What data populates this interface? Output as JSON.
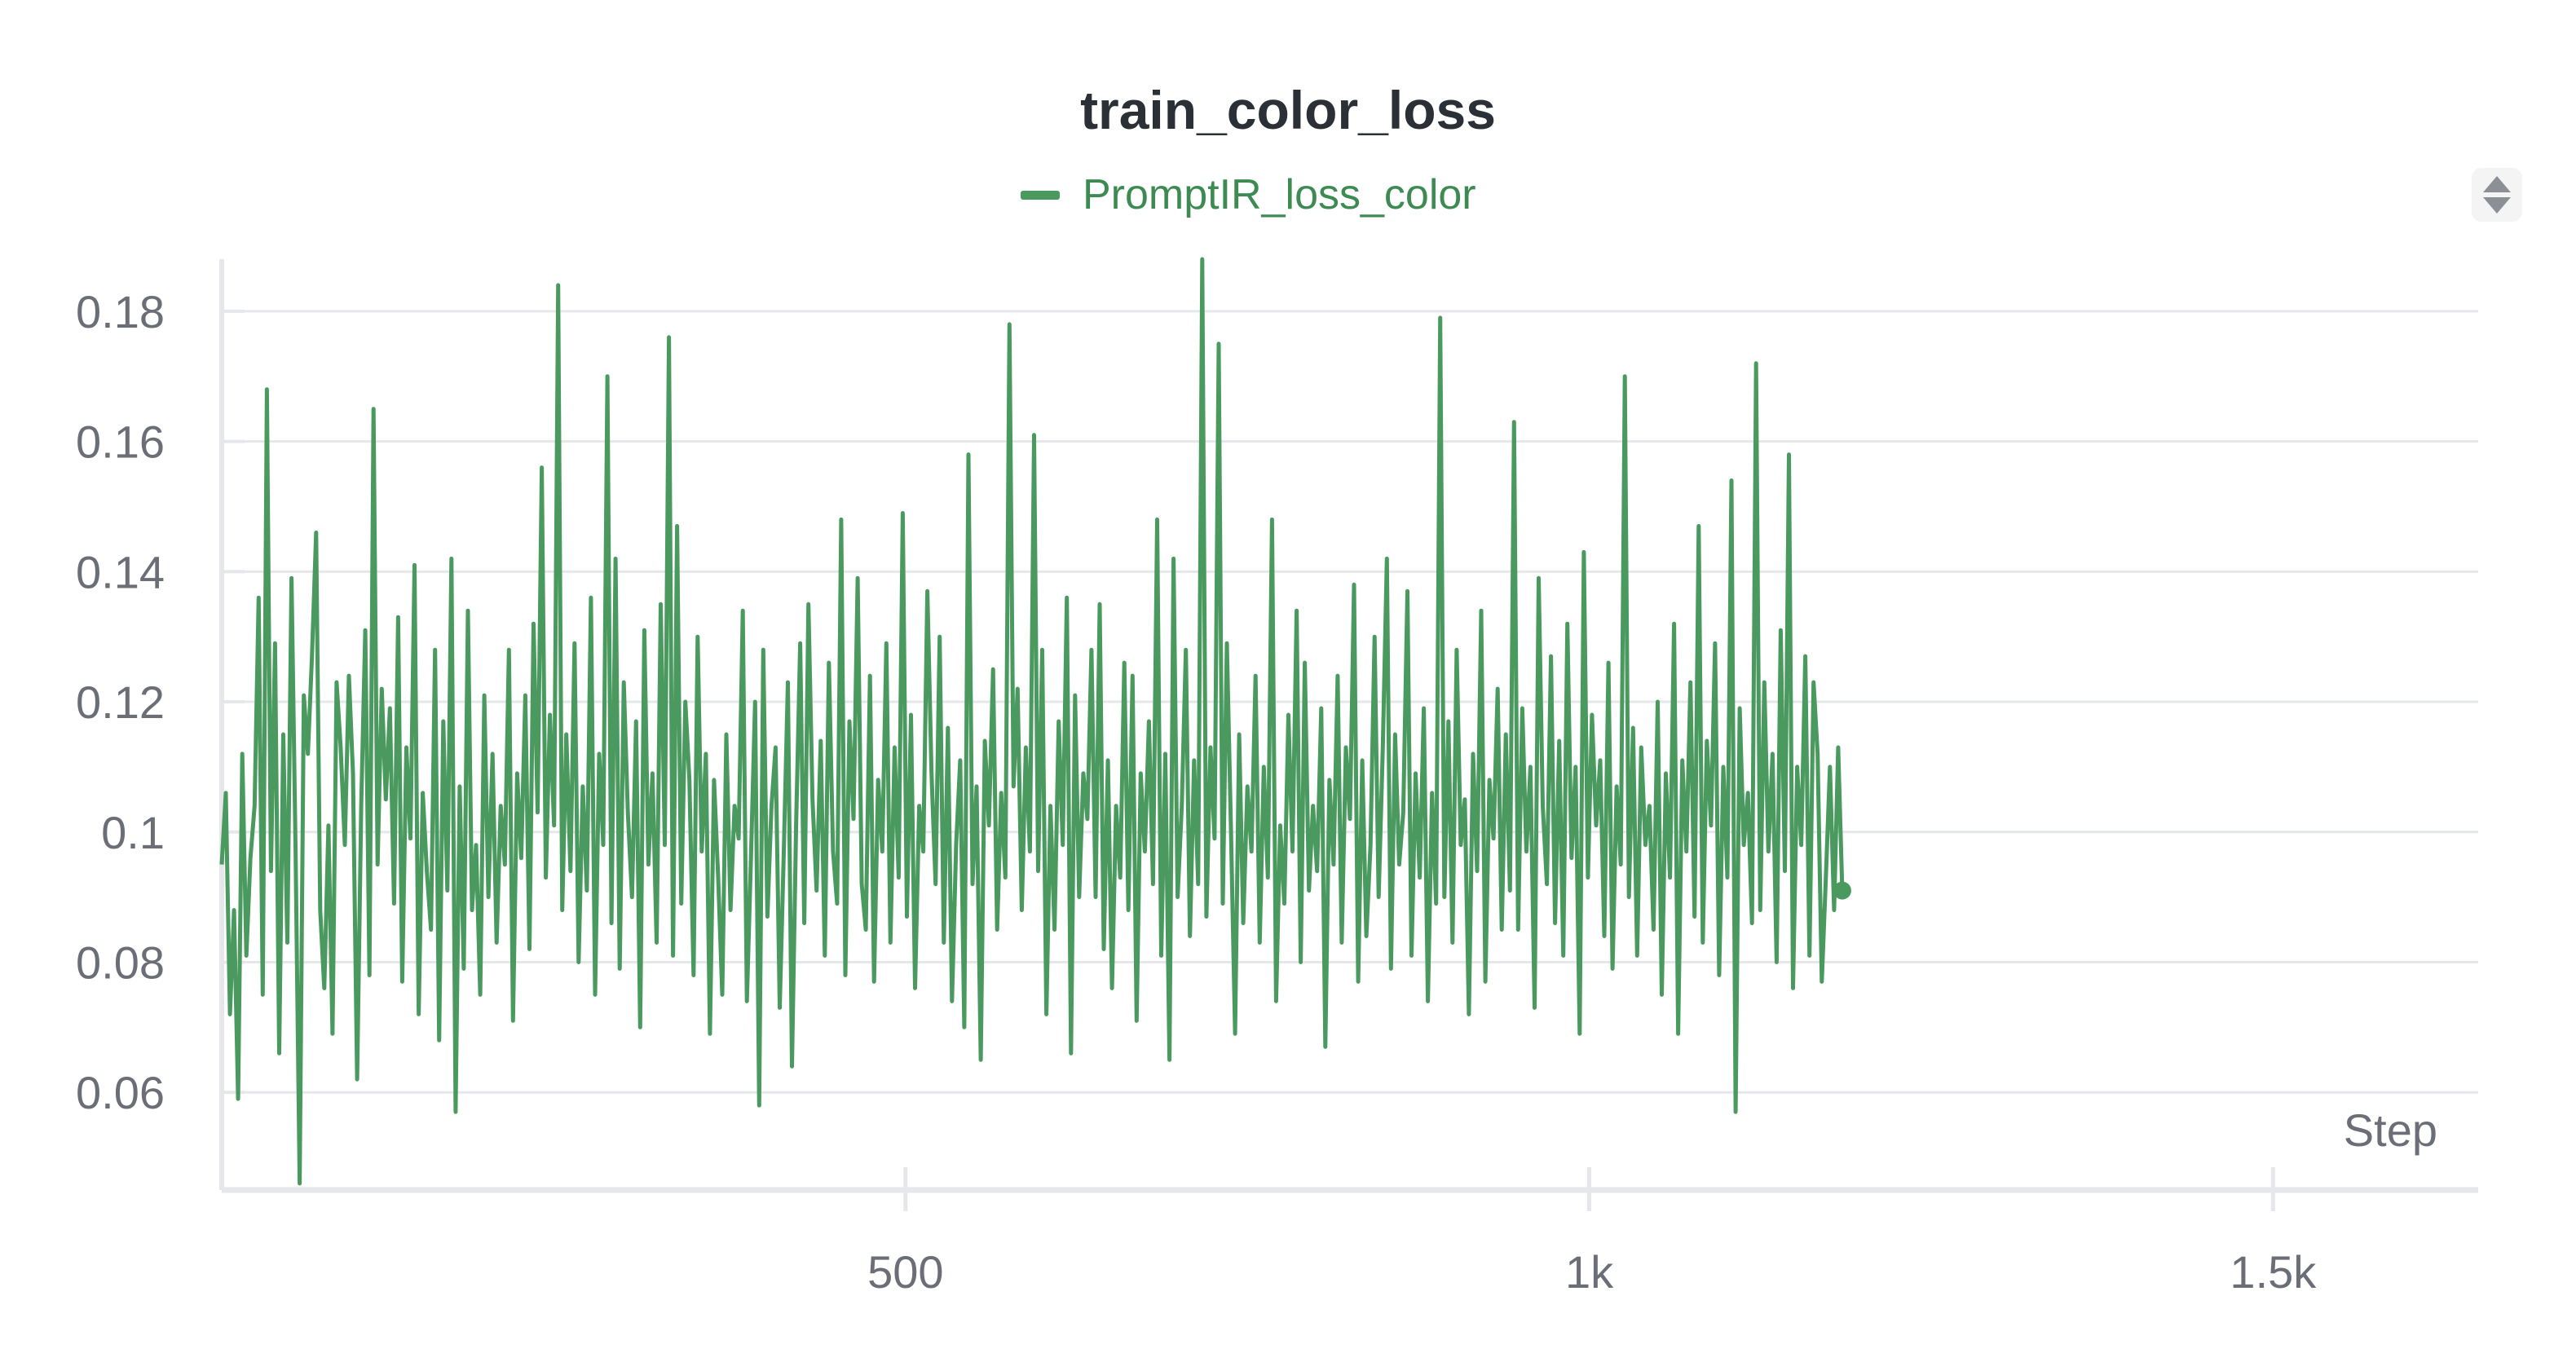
{
  "chart_data": {
    "type": "line",
    "title": "train_color_loss",
    "xlabel": "Step",
    "ylabel": "",
    "xlim": [
      0,
      1650
    ],
    "ylim": [
      0.045,
      0.188
    ],
    "x_ticks": [
      500,
      1000,
      1500
    ],
    "x_tick_labels": [
      "500",
      "1k",
      "1.5k"
    ],
    "y_ticks": [
      0.06,
      0.08,
      0.1,
      0.12,
      0.14,
      0.16,
      0.18
    ],
    "y_tick_labels": [
      "0.06",
      "0.08",
      "0.1",
      "0.12",
      "0.14",
      "0.16",
      "0.18"
    ],
    "grid": true,
    "legend_position": "top-center",
    "series": [
      {
        "name": "PromptIR_loss_color",
        "color": "#4a9a5f",
        "x_step": 3,
        "values": [
          0.095,
          0.106,
          0.072,
          0.088,
          0.059,
          0.112,
          0.081,
          0.096,
          0.104,
          0.136,
          0.075,
          0.168,
          0.094,
          0.129,
          0.066,
          0.115,
          0.083,
          0.139,
          0.097,
          0.046,
          0.121,
          0.112,
          0.127,
          0.146,
          0.088,
          0.076,
          0.101,
          0.069,
          0.123,
          0.113,
          0.098,
          0.124,
          0.109,
          0.062,
          0.104,
          0.131,
          0.078,
          0.165,
          0.095,
          0.122,
          0.105,
          0.119,
          0.089,
          0.133,
          0.077,
          0.113,
          0.099,
          0.141,
          0.072,
          0.106,
          0.094,
          0.085,
          0.128,
          0.068,
          0.117,
          0.091,
          0.142,
          0.057,
          0.107,
          0.079,
          0.134,
          0.088,
          0.098,
          0.075,
          0.121,
          0.09,
          0.112,
          0.083,
          0.104,
          0.095,
          0.128,
          0.071,
          0.109,
          0.096,
          0.121,
          0.082,
          0.132,
          0.103,
          0.156,
          0.093,
          0.118,
          0.101,
          0.184,
          0.088,
          0.115,
          0.094,
          0.129,
          0.08,
          0.107,
          0.091,
          0.136,
          0.075,
          0.112,
          0.098,
          0.17,
          0.086,
          0.142,
          0.079,
          0.123,
          0.103,
          0.09,
          0.117,
          0.07,
          0.131,
          0.095,
          0.109,
          0.083,
          0.135,
          0.098,
          0.176,
          0.081,
          0.147,
          0.089,
          0.12,
          0.108,
          0.078,
          0.13,
          0.097,
          0.112,
          0.069,
          0.108,
          0.093,
          0.075,
          0.115,
          0.088,
          0.104,
          0.099,
          0.134,
          0.074,
          0.096,
          0.12,
          0.058,
          0.128,
          0.087,
          0.104,
          0.113,
          0.073,
          0.097,
          0.123,
          0.064,
          0.101,
          0.129,
          0.086,
          0.135,
          0.105,
          0.091,
          0.114,
          0.081,
          0.126,
          0.097,
          0.089,
          0.148,
          0.078,
          0.117,
          0.102,
          0.139,
          0.092,
          0.085,
          0.124,
          0.077,
          0.108,
          0.097,
          0.129,
          0.083,
          0.113,
          0.093,
          0.149,
          0.087,
          0.118,
          0.076,
          0.104,
          0.097,
          0.137,
          0.109,
          0.092,
          0.13,
          0.083,
          0.116,
          0.074,
          0.098,
          0.111,
          0.07,
          0.158,
          0.092,
          0.107,
          0.065,
          0.114,
          0.101,
          0.125,
          0.085,
          0.106,
          0.093,
          0.178,
          0.107,
          0.122,
          0.088,
          0.113,
          0.097,
          0.161,
          0.094,
          0.128,
          0.072,
          0.104,
          0.085,
          0.117,
          0.098,
          0.136,
          0.066,
          0.121,
          0.09,
          0.109,
          0.102,
          0.128,
          0.09,
          0.135,
          0.082,
          0.111,
          0.076,
          0.104,
          0.093,
          0.126,
          0.088,
          0.124,
          0.071,
          0.109,
          0.097,
          0.117,
          0.092,
          0.148,
          0.081,
          0.112,
          0.065,
          0.142,
          0.09,
          0.104,
          0.128,
          0.084,
          0.111,
          0.092,
          0.188,
          0.087,
          0.113,
          0.099,
          0.175,
          0.089,
          0.129,
          0.1,
          0.069,
          0.115,
          0.086,
          0.107,
          0.097,
          0.124,
          0.083,
          0.11,
          0.093,
          0.148,
          0.074,
          0.101,
          0.089,
          0.118,
          0.097,
          0.134,
          0.08,
          0.126,
          0.091,
          0.104,
          0.094,
          0.119,
          0.067,
          0.108,
          0.095,
          0.124,
          0.083,
          0.113,
          0.102,
          0.138,
          0.077,
          0.111,
          0.084,
          0.098,
          0.13,
          0.09,
          0.113,
          0.142,
          0.079,
          0.115,
          0.095,
          0.103,
          0.137,
          0.081,
          0.109,
          0.093,
          0.119,
          0.074,
          0.106,
          0.089,
          0.179,
          0.09,
          0.117,
          0.083,
          0.128,
          0.098,
          0.105,
          0.072,
          0.112,
          0.094,
          0.134,
          0.077,
          0.108,
          0.099,
          0.122,
          0.085,
          0.115,
          0.091,
          0.163,
          0.085,
          0.119,
          0.097,
          0.11,
          0.073,
          0.139,
          0.104,
          0.092,
          0.127,
          0.086,
          0.114,
          0.081,
          0.132,
          0.096,
          0.11,
          0.069,
          0.143,
          0.093,
          0.118,
          0.101,
          0.111,
          0.084,
          0.126,
          0.079,
          0.107,
          0.095,
          0.17,
          0.09,
          0.116,
          0.081,
          0.113,
          0.098,
          0.104,
          0.085,
          0.12,
          0.075,
          0.109,
          0.093,
          0.132,
          0.069,
          0.111,
          0.097,
          0.123,
          0.087,
          0.147,
          0.083,
          0.114,
          0.101,
          0.129,
          0.078,
          0.11,
          0.093,
          0.154,
          0.057,
          0.119,
          0.098,
          0.106,
          0.086,
          0.172,
          0.088,
          0.123,
          0.097,
          0.112,
          0.08,
          0.131,
          0.094,
          0.158,
          0.076,
          0.11,
          0.098,
          0.127,
          0.081,
          0.123,
          0.112,
          0.077,
          0.093,
          0.11,
          0.088,
          0.113,
          0.091
        ]
      }
    ]
  },
  "toolbar": {
    "sort_control_icon": "sort-arrows-icon"
  }
}
